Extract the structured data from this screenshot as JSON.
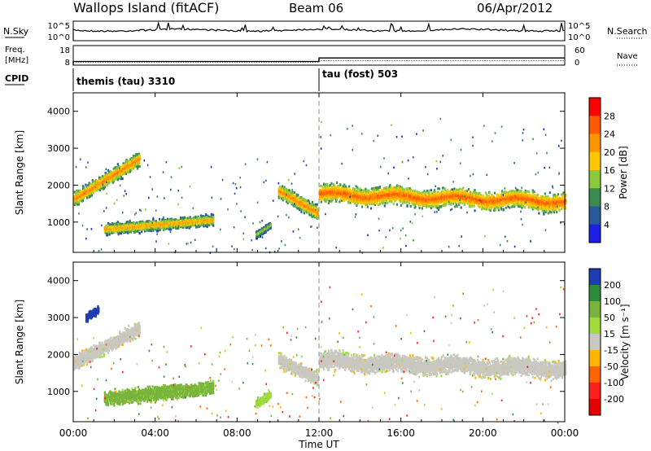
{
  "header": {
    "station": "Wallops Island (fitACF)",
    "beam": "Beam 06",
    "date": "06/Apr/2012"
  },
  "summary_panels": {
    "nsky_label": "N.Sky",
    "nsearch_label": "N.Search",
    "nsky_ticks": [
      "10^5",
      "10^0"
    ],
    "nsearch_ticks": [
      "10^5",
      "10^0"
    ],
    "freq_label": "Freq.",
    "freq_unit": "[MHz]",
    "freq_ticks": [
      "18",
      "8"
    ],
    "nave_label": "Nave",
    "nave_ticks": [
      "60",
      "0"
    ],
    "cpid_label": "CPID",
    "cpid_segments": [
      {
        "label": "themis (tau) 3310",
        "start_hour": 0
      },
      {
        "label": "tau (fost) 503",
        "start_hour": 12
      }
    ],
    "freq_steps": [
      {
        "start_hour": 0,
        "end_hour": 12,
        "freq_mhz": 10
      },
      {
        "start_hour": 12,
        "end_hour": 24,
        "freq_mhz": 12
      }
    ],
    "nave_level": [
      {
        "start_hour": 0,
        "end_hour": 12,
        "value": 8
      },
      {
        "start_hour": 12,
        "end_hour": 24,
        "value": 12
      }
    ]
  },
  "x_axis": {
    "label": "Time UT",
    "ticks": [
      "00:00",
      "04:00",
      "08:00",
      "12:00",
      "16:00",
      "20:00",
      "00:00"
    ]
  },
  "power_colorbar": {
    "label": "Power [dB]",
    "ticks": [
      "28",
      "24",
      "20",
      "16",
      "12",
      "8",
      "4"
    ],
    "colors": [
      "#ff0000",
      "#ff5a00",
      "#ff9600",
      "#ffc800",
      "#8cc83c",
      "#3c8c50",
      "#285a9b",
      "#1e1ee6"
    ]
  },
  "velocity_colorbar": {
    "label": "Velocity [m s⁻¹]",
    "ticks": [
      "200",
      "100",
      "50",
      "15",
      "-15",
      "-50",
      "-100",
      "-200"
    ],
    "colors": [
      "#1e3cb4",
      "#2d8c3c",
      "#78b43c",
      "#a0dc3c",
      "#c8c8c0",
      "#ffb400",
      "#ff6400",
      "#ff1e1e",
      "#e60000"
    ]
  },
  "chart_data": [
    {
      "type": "heatmap",
      "panel": "power",
      "ylabel": "Slant Range [km]",
      "yticks": [
        "4000",
        "3000",
        "2000",
        "1000"
      ],
      "ylim": [
        180,
        4500
      ],
      "xlim_hours": [
        0,
        24
      ],
      "features": [
        {
          "t0": 0.0,
          "t1": 3.2,
          "r0": 1600,
          "r1": 2700,
          "width_km": 260,
          "peak_db": 24
        },
        {
          "t0": 1.5,
          "t1": 6.8,
          "r0": 800,
          "r1": 1050,
          "width_km": 200,
          "peak_db": 22
        },
        {
          "t0": 8.9,
          "t1": 9.6,
          "r0": 650,
          "r1": 900,
          "width_km": 150,
          "peak_db": 16
        },
        {
          "t0": 10.0,
          "t1": 11.9,
          "r0": 1850,
          "r1": 1250,
          "width_km": 250,
          "peak_db": 24
        },
        {
          "t0": 12.0,
          "t1": 24.0,
          "r0": 1750,
          "r1": 1550,
          "width_km": 320,
          "peak_db": 26
        }
      ],
      "colorbar": "Power [dB]"
    },
    {
      "type": "heatmap",
      "panel": "velocity",
      "ylabel": "Slant Range [km]",
      "yticks": [
        "4000",
        "3000",
        "2000",
        "1000"
      ],
      "ylim": [
        180,
        4500
      ],
      "xlim_hours": [
        0,
        24
      ],
      "features": [
        {
          "t0": 0.0,
          "t1": 3.2,
          "r0": 1750,
          "r1": 2700,
          "width_km": 260,
          "velocity": 0
        },
        {
          "t0": 1.5,
          "t1": 6.8,
          "r0": 800,
          "r1": 1100,
          "width_km": 250,
          "velocity": 60
        },
        {
          "t0": 0.6,
          "t1": 1.2,
          "r0": 3000,
          "r1": 3200,
          "width_km": 150,
          "velocity": 250
        },
        {
          "t0": 8.9,
          "t1": 9.6,
          "r0": 650,
          "r1": 900,
          "width_km": 150,
          "velocity": 40
        },
        {
          "t0": 10.0,
          "t1": 11.9,
          "r0": 1850,
          "r1": 1350,
          "width_km": 250,
          "velocity": 0
        },
        {
          "t0": 12.0,
          "t1": 24.0,
          "r0": 1800,
          "r1": 1600,
          "width_km": 320,
          "velocity": 0
        }
      ],
      "colorbar": "Velocity [m s⁻¹]"
    }
  ]
}
